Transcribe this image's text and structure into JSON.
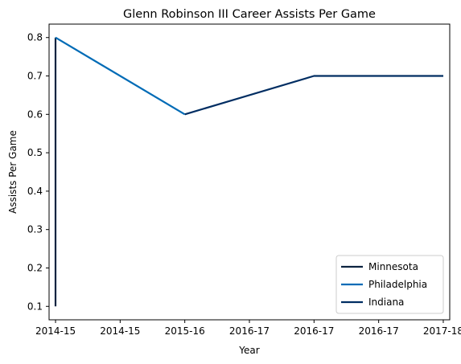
{
  "chart_data": {
    "type": "line",
    "title": "Glenn Robinson III Career Assists Per Game",
    "xlabel": "Year",
    "ylabel": "Assists Per Game",
    "x_tick_labels": [
      "2014-15",
      "2014-15",
      "2015-16",
      "2016-17",
      "2016-17",
      "2016-17",
      "2017-18"
    ],
    "y_ticks": [
      0.1,
      0.2,
      0.3,
      0.4,
      0.5,
      0.6,
      0.7,
      0.8
    ],
    "ylim": [
      0.065,
      0.835
    ],
    "xlim": [
      -0.05,
      3.05
    ],
    "grid": false,
    "legend_position": "lower-right",
    "series": [
      {
        "name": "Minnesota",
        "color": "#0C2340",
        "points": [
          {
            "x": 0,
            "label": "2014-15",
            "y": 0.1
          },
          {
            "x": 0,
            "label": "2014-15",
            "y": 0.8
          }
        ]
      },
      {
        "name": "Philadelphia",
        "color": "#006BB6",
        "points": [
          {
            "x": 0,
            "label": "2014-15",
            "y": 0.8
          },
          {
            "x": 1,
            "label": "2015-16",
            "y": 0.6
          }
        ]
      },
      {
        "name": "Indiana",
        "color": "#002D62",
        "points": [
          {
            "x": 1,
            "label": "2015-16",
            "y": 0.6
          },
          {
            "x": 2,
            "label": "2016-17",
            "y": 0.7
          },
          {
            "x": 3,
            "label": "2017-18",
            "y": 0.7
          }
        ]
      }
    ]
  }
}
